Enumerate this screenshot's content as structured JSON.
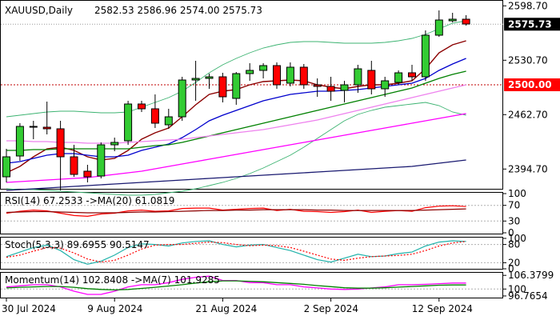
{
  "chart_data": [
    {
      "type": "candlestick",
      "title": "XAUUSD,Daily",
      "ohlc_text": "2582.53 2586.96 2574.00 2575.73",
      "y_ticks": [
        2598.7,
        2530.7,
        2462.7,
        2394.7
      ],
      "y_ticks_text": [
        "2598.70",
        "2530.70",
        "2462.70",
        "2394.70"
      ],
      "current_price": 2575.73,
      "current_price_text": "2575.73",
      "level_line": 2500.0,
      "level_text": "2500.00",
      "ylim": [
        2370,
        2605
      ],
      "x_labels": [
        "30 Jul 2024",
        "9 Aug 2024",
        "21 Aug 2024",
        "2 Sep 2024",
        "12 Sep 2024"
      ],
      "x_label_index": [
        0,
        8,
        16,
        24,
        32
      ],
      "candles": [
        {
          "o": 2385,
          "h": 2420,
          "l": 2378,
          "c": 2410
        },
        {
          "o": 2411,
          "h": 2452,
          "l": 2405,
          "c": 2448
        },
        {
          "o": 2448,
          "h": 2455,
          "l": 2432,
          "c": 2447
        },
        {
          "o": 2447,
          "h": 2479,
          "l": 2438,
          "c": 2445
        },
        {
          "o": 2445,
          "h": 2455,
          "l": 2368,
          "c": 2410
        },
        {
          "o": 2410,
          "h": 2425,
          "l": 2385,
          "c": 2388
        },
        {
          "o": 2392,
          "h": 2400,
          "l": 2378,
          "c": 2385
        },
        {
          "o": 2386,
          "h": 2428,
          "l": 2383,
          "c": 2425
        },
        {
          "o": 2425,
          "h": 2434,
          "l": 2417,
          "c": 2428
        },
        {
          "o": 2430,
          "h": 2480,
          "l": 2425,
          "c": 2476
        },
        {
          "o": 2476,
          "h": 2480,
          "l": 2466,
          "c": 2470
        },
        {
          "o": 2470,
          "h": 2488,
          "l": 2446,
          "c": 2452
        },
        {
          "o": 2450,
          "h": 2470,
          "l": 2445,
          "c": 2460
        },
        {
          "o": 2460,
          "h": 2510,
          "l": 2455,
          "c": 2506
        },
        {
          "o": 2506,
          "h": 2530,
          "l": 2480,
          "c": 2508
        },
        {
          "o": 2508,
          "h": 2514,
          "l": 2495,
          "c": 2510
        },
        {
          "o": 2510,
          "h": 2515,
          "l": 2478,
          "c": 2485
        },
        {
          "o": 2483,
          "h": 2516,
          "l": 2475,
          "c": 2514
        },
        {
          "o": 2514,
          "h": 2527,
          "l": 2505,
          "c": 2518
        },
        {
          "o": 2518,
          "h": 2527,
          "l": 2508,
          "c": 2524
        },
        {
          "o": 2524,
          "h": 2528,
          "l": 2495,
          "c": 2500
        },
        {
          "o": 2502,
          "h": 2528,
          "l": 2498,
          "c": 2522
        },
        {
          "o": 2522,
          "h": 2526,
          "l": 2495,
          "c": 2500
        },
        {
          "o": 2500,
          "h": 2508,
          "l": 2485,
          "c": 2498
        },
        {
          "o": 2498,
          "h": 2510,
          "l": 2480,
          "c": 2492
        },
        {
          "o": 2493,
          "h": 2505,
          "l": 2478,
          "c": 2500
        },
        {
          "o": 2500,
          "h": 2525,
          "l": 2490,
          "c": 2520
        },
        {
          "o": 2518,
          "h": 2530,
          "l": 2488,
          "c": 2495
        },
        {
          "o": 2495,
          "h": 2510,
          "l": 2485,
          "c": 2505
        },
        {
          "o": 2503,
          "h": 2518,
          "l": 2500,
          "c": 2515
        },
        {
          "o": 2515,
          "h": 2525,
          "l": 2505,
          "c": 2510
        },
        {
          "o": 2510,
          "h": 2568,
          "l": 2505,
          "c": 2562
        },
        {
          "o": 2562,
          "h": 2593,
          "l": 2560,
          "c": 2581
        },
        {
          "o": 2580,
          "h": 2590,
          "l": 2578,
          "c": 2582
        },
        {
          "o": 2582,
          "h": 2587,
          "l": 2574,
          "c": 2576
        }
      ],
      "moving_averages": [
        {
          "color": "#8b0000",
          "values": [
            2390,
            2398,
            2410,
            2420,
            2422,
            2418,
            2410,
            2406,
            2408,
            2418,
            2432,
            2440,
            2446,
            2460,
            2475,
            2488,
            2492,
            2494,
            2500,
            2504,
            2505,
            2506,
            2505,
            2500,
            2497,
            2495,
            2498,
            2500,
            2500,
            2502,
            2505,
            2520,
            2540,
            2550,
            2555
          ]
        },
        {
          "color": "#0000cd",
          "values": [
            2402,
            2404,
            2408,
            2412,
            2414,
            2414,
            2412,
            2410,
            2410,
            2412,
            2418,
            2422,
            2426,
            2434,
            2444,
            2455,
            2462,
            2468,
            2474,
            2480,
            2484,
            2488,
            2490,
            2492,
            2492,
            2493,
            2494,
            2496,
            2498,
            2500,
            2502,
            2508,
            2518,
            2526,
            2533
          ]
        },
        {
          "color": "#008000",
          "values": [
            2418,
            2418,
            2419,
            2419,
            2420,
            2420,
            2420,
            2420,
            2420,
            2420,
            2422,
            2424,
            2425,
            2428,
            2432,
            2436,
            2440,
            2444,
            2448,
            2452,
            2456,
            2460,
            2464,
            2468,
            2472,
            2476,
            2480,
            2484,
            2488,
            2492,
            2496,
            2502,
            2508,
            2513,
            2517
          ]
        },
        {
          "color": "#ee82ee",
          "values": [
            2430,
            2430,
            2429,
            2429,
            2428,
            2428,
            2427,
            2427,
            2427,
            2428,
            2429,
            2430,
            2431,
            2432,
            2434,
            2436,
            2438,
            2440,
            2442,
            2444,
            2447,
            2450,
            2453,
            2456,
            2460,
            2464,
            2468,
            2472,
            2476,
            2480,
            2484,
            2488,
            2492,
            2496,
            2500
          ]
        },
        {
          "color": "#ff00ff",
          "values": [
            2378,
            2379,
            2380,
            2381,
            2382,
            2383,
            2384,
            2386,
            2388,
            2390,
            2392,
            2395,
            2398,
            2401,
            2404,
            2407,
            2410,
            2413,
            2416,
            2419,
            2422,
            2425,
            2428,
            2431,
            2434,
            2437,
            2440,
            2443,
            2446,
            2449,
            2452,
            2455,
            2458,
            2461,
            2464
          ]
        },
        {
          "color": "#191970",
          "values": [
            2368,
            2369,
            2370,
            2371,
            2372,
            2373,
            2374,
            2375,
            2376,
            2377,
            2378,
            2379,
            2380,
            2381,
            2382,
            2383,
            2384,
            2385,
            2386,
            2387,
            2388,
            2389,
            2390,
            2391,
            2392,
            2393,
            2394,
            2395,
            2396,
            2397,
            2398,
            2400,
            2402,
            2404,
            2406
          ]
        }
      ],
      "bollinger": {
        "color": "#3cb371",
        "upper": [
          2460,
          2462,
          2464,
          2466,
          2467,
          2467,
          2466,
          2465,
          2465,
          2466,
          2472,
          2478,
          2484,
          2492,
          2503,
          2515,
          2525,
          2533,
          2540,
          2546,
          2550,
          2553,
          2554,
          2554,
          2553,
          2552,
          2552,
          2552,
          2553,
          2555,
          2558,
          2563,
          2570,
          2577,
          2580
        ],
        "lower": [
          2370,
          2369,
          2369,
          2368,
          2367,
          2366,
          2365,
          2364,
          2363,
          2362,
          2362,
          2363,
          2365,
          2367,
          2370,
          2374,
          2378,
          2383,
          2389,
          2396,
          2404,
          2412,
          2422,
          2433,
          2444,
          2455,
          2463,
          2468,
          2472,
          2474,
          2476,
          2478,
          2474,
          2466,
          2462
        ]
      }
    },
    {
      "type": "line",
      "title": "RSI(14) 67.2533 ->MA(20) 61.0819",
      "y_ticks": [
        100,
        70,
        30,
        0
      ],
      "y_ticks_text": [
        "100",
        "70",
        "30",
        "0"
      ],
      "ylim": [
        0,
        100
      ],
      "series": [
        {
          "color": "#ff0000",
          "values": [
            50,
            55,
            58,
            56,
            50,
            44,
            42,
            48,
            50,
            56,
            58,
            55,
            56,
            62,
            63,
            63,
            58,
            60,
            62,
            63,
            57,
            60,
            55,
            54,
            52,
            54,
            58,
            52,
            55,
            57,
            55,
            64,
            68,
            69,
            67
          ]
        },
        {
          "color": "#8b0000",
          "values": [
            52,
            53,
            54,
            54,
            53,
            52,
            51,
            51,
            51,
            52,
            53,
            53,
            54,
            55,
            56,
            57,
            57,
            58,
            58,
            59,
            59,
            59,
            59,
            58,
            58,
            57,
            57,
            57,
            57,
            57,
            57,
            58,
            59,
            60,
            61
          ]
        }
      ]
    },
    {
      "type": "line",
      "title": "Stoch(5,3,3) 89.6955 90.5147",
      "y_ticks": [
        100,
        80,
        20,
        0
      ],
      "y_ticks_text": [
        "100",
        "80",
        "20",
        "0"
      ],
      "ylim": [
        0,
        100
      ],
      "series": [
        {
          "color": "#20b2aa",
          "values": [
            40,
            55,
            70,
            78,
            60,
            30,
            15,
            25,
            45,
            70,
            82,
            80,
            75,
            85,
            90,
            92,
            80,
            72,
            78,
            80,
            70,
            60,
            45,
            30,
            22,
            35,
            48,
            40,
            42,
            50,
            55,
            75,
            88,
            92,
            90
          ]
        },
        {
          "color": "#ff0000",
          "dash": true,
          "values": [
            38,
            45,
            58,
            70,
            68,
            52,
            32,
            22,
            28,
            45,
            65,
            78,
            80,
            80,
            84,
            88,
            86,
            80,
            76,
            78,
            76,
            70,
            58,
            45,
            32,
            28,
            35,
            40,
            42,
            44,
            48,
            60,
            75,
            85,
            90
          ]
        }
      ]
    },
    {
      "type": "line",
      "title": "Momentum(14) 102.8408 ->MA(7) 101.9285",
      "y_ticks": [
        106.3799,
        100,
        96.7654
      ],
      "y_ticks_text": [
        "106.3799",
        "100",
        "96.7654"
      ],
      "ylim": [
        96.0,
        107.2
      ],
      "series": [
        {
          "color": "#ff00ff",
          "values": [
            101,
            101.5,
            102,
            102,
            101,
            99,
            97.5,
            97.5,
            99,
            101,
            102,
            102,
            103,
            104.5,
            105.5,
            106,
            104,
            104,
            103,
            103,
            102,
            102,
            101,
            100.5,
            100,
            99.8,
            100,
            100.5,
            101,
            102,
            102,
            102.2,
            102.5,
            102.8,
            102.8
          ]
        },
        {
          "color": "#008000",
          "values": [
            100.5,
            100.8,
            101,
            101.2,
            101.2,
            100.8,
            100.2,
            99.8,
            99.6,
            99.8,
            100.3,
            100.8,
            101.4,
            102,
            102.8,
            103.4,
            103.8,
            103.8,
            103.6,
            103.4,
            103,
            102.6,
            102.2,
            101.6,
            101.1,
            100.6,
            100.4,
            100.4,
            100.6,
            100.9,
            101.2,
            101.5,
            101.8,
            101.9,
            101.9
          ]
        }
      ]
    }
  ]
}
